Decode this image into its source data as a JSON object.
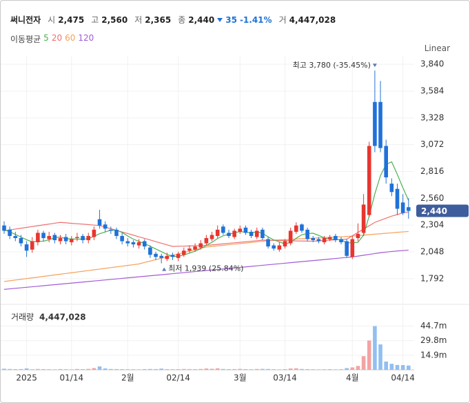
{
  "header": {
    "name": "써니전자",
    "open_key": "시",
    "open": "2,475",
    "high_key": "고",
    "high": "2,560",
    "low_key": "저",
    "low": "2,365",
    "close_key": "종",
    "close": "2,440",
    "change": "35",
    "change_pct": "-1.41%",
    "volume_key": "거",
    "volume": "4,447,028",
    "ma_title": "이동평균",
    "scale": "Linear"
  },
  "chart_data": [
    {
      "type": "candlestick",
      "up_color": "#e8352f",
      "down_color": "#1f72d8",
      "ylim": [
        1600,
        3920
      ],
      "yticks": [
        {
          "value": 3840,
          "label": "3,840"
        },
        {
          "value": 3584,
          "label": "3,584"
        },
        {
          "value": 3328,
          "label": "3,328"
        },
        {
          "value": 3072,
          "label": "3,072"
        },
        {
          "value": 2816,
          "label": "2,816"
        },
        {
          "value": 2560,
          "label": "2,560"
        },
        {
          "value": 2304,
          "label": "2,304"
        },
        {
          "value": 2048,
          "label": "2,048"
        },
        {
          "value": 1792,
          "label": "1,792"
        }
      ],
      "grid": true,
      "max_label": "최고 3,780 (-35.45%)",
      "min_label": "최저 1,939 (25.84%)",
      "open": [
        2300,
        2260,
        2200,
        2180,
        2120,
        2070,
        2140,
        2230,
        2170,
        2210,
        2150,
        2190,
        2140,
        2180,
        2200,
        2160,
        2190,
        2360,
        2310,
        2260,
        2260,
        2200,
        2150,
        2140,
        2110,
        2150,
        2090,
        2030,
        2010,
        1980,
        2020,
        1990,
        2020,
        2060,
        2070,
        2090,
        2130,
        2170,
        2200,
        2290,
        2230,
        2190,
        2240,
        2280,
        2240,
        2190,
        2260,
        2170,
        2110,
        2070,
        2100,
        2130,
        2240,
        2310,
        2260,
        2180,
        2170,
        2140,
        2170,
        2200,
        2170,
        2150,
        2000,
        2180,
        2230,
        2400,
        3480,
        3480,
        3060,
        2700,
        2650,
        2520,
        2475
      ],
      "high": [
        2340,
        2290,
        2240,
        2210,
        2150,
        2190,
        2260,
        2250,
        2240,
        2230,
        2210,
        2220,
        2200,
        2230,
        2220,
        2230,
        2290,
        2450,
        2340,
        2290,
        2280,
        2230,
        2180,
        2160,
        2170,
        2170,
        2110,
        2050,
        2030,
        2040,
        2040,
        2050,
        2090,
        2110,
        2130,
        2160,
        2210,
        2240,
        2300,
        2310,
        2260,
        2270,
        2300,
        2300,
        2260,
        2280,
        2280,
        2190,
        2130,
        2140,
        2170,
        2280,
        2330,
        2320,
        2280,
        2200,
        2190,
        2200,
        2210,
        2220,
        2190,
        2170,
        2200,
        2320,
        2600,
        3100,
        3780,
        3680,
        3120,
        2750,
        2700,
        2600,
        2560
      ],
      "low": [
        2220,
        2170,
        2150,
        2100,
        2000,
        2040,
        2110,
        2150,
        2140,
        2130,
        2120,
        2120,
        2110,
        2150,
        2130,
        2130,
        2160,
        2270,
        2240,
        2220,
        2170,
        2120,
        2100,
        2090,
        2080,
        2070,
        1990,
        1970,
        1939,
        1960,
        1970,
        1960,
        2000,
        2040,
        2050,
        2070,
        2110,
        2150,
        2180,
        2210,
        2180,
        2170,
        2220,
        2210,
        2180,
        2170,
        2160,
        2080,
        2060,
        2050,
        2080,
        2110,
        2220,
        2230,
        2150,
        2140,
        2130,
        2120,
        2150,
        2140,
        2120,
        1990,
        1980,
        2150,
        2200,
        2380,
        3000,
        3000,
        2700,
        2580,
        2400,
        2400,
        2365
      ],
      "close": [
        2250,
        2200,
        2180,
        2130,
        2060,
        2150,
        2230,
        2180,
        2200,
        2160,
        2180,
        2150,
        2170,
        2190,
        2160,
        2200,
        2260,
        2300,
        2270,
        2250,
        2200,
        2150,
        2130,
        2120,
        2140,
        2100,
        2020,
        2000,
        1990,
        2010,
        2000,
        2030,
        2060,
        2080,
        2100,
        2130,
        2180,
        2210,
        2260,
        2230,
        2200,
        2250,
        2270,
        2230,
        2200,
        2250,
        2180,
        2100,
        2080,
        2110,
        2150,
        2250,
        2300,
        2250,
        2170,
        2160,
        2150,
        2180,
        2190,
        2160,
        2140,
        2010,
        2170,
        2220,
        2500,
        3060,
        3060,
        3040,
        2760,
        2620,
        2460,
        2420,
        2440
      ],
      "series": [
        {
          "name": "5",
          "color": "#4caf50",
          "values": [
            2260,
            2240,
            2215,
            2190,
            2164,
            2144,
            2150,
            2150,
            2164,
            2184,
            2190,
            2174,
            2172,
            2170,
            2170,
            2174,
            2196,
            2222,
            2238,
            2256,
            2256,
            2234,
            2200,
            2170,
            2148,
            2128,
            2102,
            2076,
            2050,
            2024,
            2004,
            2006,
            2018,
            2036,
            2054,
            2080,
            2110,
            2140,
            2176,
            2202,
            2216,
            2230,
            2242,
            2236,
            2230,
            2240,
            2226,
            2192,
            2162,
            2144,
            2124,
            2138,
            2178,
            2212,
            2224,
            2226,
            2206,
            2182,
            2170,
            2168,
            2164,
            2136,
            2134,
            2140,
            2208,
            2392,
            2602,
            2776,
            2884,
            2908,
            2788,
            2660,
            2540
          ]
        },
        {
          "name": "20",
          "color": "#ef6f6f",
          "values": [
            2250,
            2258,
            2266,
            2274,
            2282,
            2290,
            2298,
            2306,
            2314,
            2322,
            2330,
            2326,
            2321,
            2317,
            2313,
            2309,
            2304,
            2300,
            2285,
            2269,
            2254,
            2238,
            2223,
            2208,
            2192,
            2177,
            2162,
            2146,
            2131,
            2115,
            2100,
            2102,
            2103,
            2105,
            2107,
            2108,
            2110,
            2115,
            2120,
            2125,
            2130,
            2135,
            2140,
            2145,
            2150,
            2155,
            2160,
            2159,
            2158,
            2157,
            2156,
            2154,
            2153,
            2152,
            2151,
            2150,
            2153,
            2157,
            2160,
            2163,
            2167,
            2170,
            2202,
            2234,
            2266,
            2298,
            2330,
            2350,
            2370,
            2390,
            2405,
            2420,
            2430
          ]
        },
        {
          "name": "60",
          "color": "#f5a05a",
          "values": [
            1765,
            1772,
            1779,
            1786,
            1793,
            1800,
            1807,
            1814,
            1821,
            1828,
            1835,
            1842,
            1849,
            1856,
            1863,
            1870,
            1877,
            1884,
            1891,
            1898,
            1905,
            1912,
            1919,
            1926,
            1933,
            1947,
            1960,
            1974,
            1987,
            2001,
            2014,
            2028,
            2041,
            2055,
            2068,
            2082,
            2095,
            2100,
            2106,
            2111,
            2117,
            2122,
            2128,
            2133,
            2138,
            2144,
            2149,
            2155,
            2160,
            2163,
            2165,
            2168,
            2171,
            2174,
            2176,
            2179,
            2182,
            2184,
            2187,
            2190,
            2192,
            2195,
            2199,
            2204,
            2208,
            2213,
            2217,
            2221,
            2226,
            2230,
            2235,
            2239,
            2243
          ]
        },
        {
          "name": "120",
          "color": "#a25ad6",
          "values": [
            1690,
            1695,
            1700,
            1705,
            1710,
            1715,
            1720,
            1725,
            1730,
            1735,
            1740,
            1745,
            1750,
            1755,
            1760,
            1765,
            1770,
            1775,
            1780,
            1785,
            1790,
            1795,
            1800,
            1805,
            1810,
            1815,
            1820,
            1825,
            1830,
            1835,
            1840,
            1845,
            1850,
            1855,
            1860,
            1865,
            1870,
            1875,
            1880,
            1885,
            1890,
            1895,
            1900,
            1905,
            1910,
            1915,
            1920,
            1925,
            1930,
            1935,
            1940,
            1945,
            1950,
            1955,
            1960,
            1965,
            1970,
            1975,
            1980,
            1985,
            1990,
            1995,
            2000,
            2008,
            2016,
            2024,
            2032,
            2040,
            2046,
            2052,
            2057,
            2061,
            2065
          ]
        }
      ]
    },
    {
      "type": "bar",
      "title": "거래량",
      "last_label": "4,447,028",
      "up_color": "#f3a3a3",
      "down_color": "#92bff0",
      "ylim": [
        0,
        62000000
      ],
      "yticks": [
        {
          "value": 44700000,
          "label": "44.7m"
        },
        {
          "value": 29800000,
          "label": "29.8m"
        },
        {
          "value": 14900000,
          "label": "14.9m"
        }
      ],
      "categories": [
        null,
        null,
        null,
        null,
        "2025",
        null,
        null,
        null,
        null,
        null,
        null,
        null,
        "01/14",
        null,
        null,
        null,
        null,
        null,
        null,
        null,
        null,
        null,
        "2월",
        null,
        null,
        null,
        null,
        null,
        null,
        null,
        null,
        "02/14",
        null,
        null,
        null,
        null,
        null,
        null,
        null,
        null,
        null,
        null,
        "3월",
        null,
        null,
        null,
        null,
        null,
        null,
        null,
        "03/14",
        null,
        null,
        null,
        null,
        null,
        null,
        null,
        null,
        null,
        null,
        null,
        "4월",
        null,
        null,
        null,
        null,
        null,
        null,
        null,
        null,
        "04/14",
        null
      ],
      "values": [
        1200000,
        900000,
        700000,
        800000,
        1500000,
        600000,
        900000,
        700000,
        600000,
        500000,
        800000,
        600000,
        500000,
        900000,
        700000,
        1000000,
        1800000,
        3500000,
        1500000,
        900000,
        800000,
        700000,
        600000,
        600000,
        500000,
        700000,
        900000,
        800000,
        1300000,
        700000,
        600000,
        700000,
        900000,
        800000,
        700000,
        900000,
        1400000,
        1100000,
        1600000,
        900000,
        700000,
        800000,
        1000000,
        700000,
        600000,
        900000,
        1000000,
        900000,
        600000,
        500000,
        700000,
        1400000,
        1600000,
        900000,
        700000,
        600000,
        500000,
        600000,
        700000,
        500000,
        600000,
        1800000,
        2500000,
        4000000,
        14000000,
        30000000,
        44700000,
        26000000,
        8500000,
        6200000,
        5000000,
        4900000,
        4447028
      ]
    }
  ]
}
